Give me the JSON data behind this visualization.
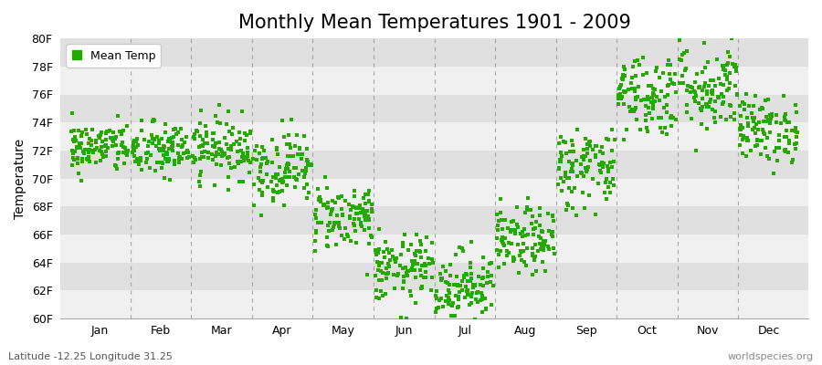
{
  "title": "Monthly Mean Temperatures 1901 - 2009",
  "ylabel": "Temperature",
  "xlabel": "",
  "bottom_left_text": "Latitude -12.25 Longitude 31.25",
  "bottom_right_text": "worldspecies.org",
  "legend_label": "Mean Temp",
  "dot_color": "#22aa00",
  "background_color": "#ffffff",
  "plot_bg_light": "#f0f0f0",
  "plot_bg_dark": "#e0e0e0",
  "ylim_min": 60,
  "ylim_max": 80,
  "ytick_labels": [
    "60F",
    "62F",
    "64F",
    "66F",
    "68F",
    "70F",
    "72F",
    "74F",
    "76F",
    "78F",
    "80F"
  ],
  "ytick_values": [
    60,
    62,
    64,
    66,
    68,
    70,
    72,
    74,
    76,
    78,
    80
  ],
  "month_names": [
    "Jan",
    "Feb",
    "Mar",
    "Apr",
    "May",
    "Jun",
    "Jul",
    "Aug",
    "Sep",
    "Oct",
    "Nov",
    "Dec"
  ],
  "monthly_mean_temps_F": [
    72.2,
    72.0,
    72.2,
    70.8,
    67.3,
    63.5,
    62.3,
    65.5,
    70.8,
    76.0,
    76.5,
    73.5
  ],
  "monthly_std_F": [
    0.9,
    1.0,
    1.1,
    1.3,
    1.2,
    1.2,
    1.3,
    1.2,
    1.5,
    1.5,
    1.6,
    1.2
  ],
  "n_years": 109,
  "marker_size": 3,
  "title_fontsize": 15,
  "axis_label_fontsize": 10,
  "tick_fontsize": 9,
  "legend_fontsize": 9,
  "vline_color": "#999999"
}
